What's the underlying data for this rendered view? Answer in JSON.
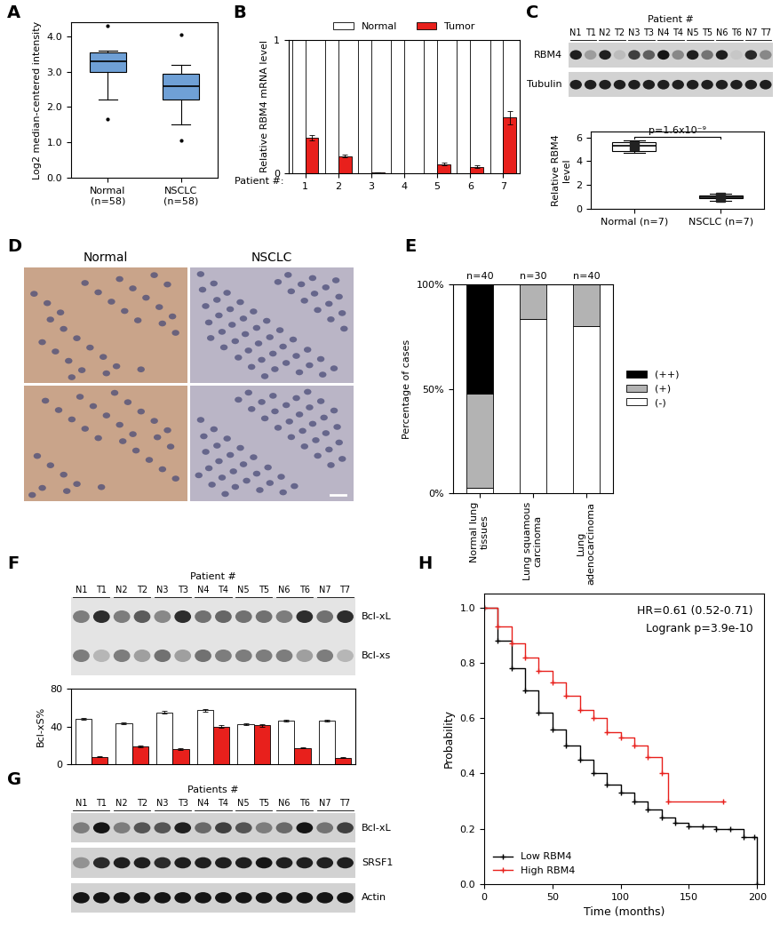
{
  "chart_data": [
    {
      "panel": "A",
      "type": "box",
      "ylabel": "Log2 median-centered intensity",
      "categories": [
        "Normal\n(n=58)",
        "NSCLC\n(n=58)"
      ],
      "boxes": [
        {
          "whislo": 2.2,
          "q1": 3.0,
          "med": 3.3,
          "q3": 3.55,
          "whishi": 3.6,
          "fliers": [
            1.65,
            4.3
          ]
        },
        {
          "whislo": 1.5,
          "q1": 2.2,
          "med": 2.6,
          "q3": 2.95,
          "whishi": 3.2,
          "fliers": [
            1.05,
            4.05
          ]
        }
      ],
      "color": "#6fa0d6",
      "ylim": [
        0,
        4.4
      ],
      "yticks": [
        {
          "value": 0,
          "label": "0.0"
        },
        {
          "value": 1,
          "label": "1.0"
        },
        {
          "value": 2,
          "label": "2.0"
        },
        {
          "value": 3,
          "label": "3.0"
        },
        {
          "value": 4,
          "label": "4.0"
        }
      ]
    },
    {
      "panel": "B",
      "type": "bar",
      "ylabel": "Relative RBM4 mRNA level",
      "xlabel": "Patient #:",
      "categories": [
        "1",
        "2",
        "3",
        "4",
        "5",
        "6",
        "7"
      ],
      "series": [
        {
          "name": "Normal",
          "color": "#ffffff",
          "values": [
            1,
            1,
            1,
            1,
            1,
            1,
            1
          ]
        },
        {
          "name": "Tumor",
          "color": "#e8201c",
          "values": [
            0.27,
            0.13,
            0.01,
            0.0,
            0.07,
            0.05,
            0.42
          ],
          "errors": [
            0.02,
            0.01,
            0.0,
            0.0,
            0.01,
            0.01,
            0.05
          ]
        }
      ],
      "ylim": [
        0,
        1
      ],
      "yticks": [
        0,
        1
      ],
      "legend": "top"
    },
    {
      "panel": "C",
      "type": "blot",
      "header": "Patient #",
      "lanes": [
        "N1",
        "T1",
        "N2",
        "T2",
        "N3",
        "T3",
        "N4",
        "T4",
        "N5",
        "T5",
        "N6",
        "T6",
        "N7",
        "T7"
      ],
      "rows": [
        {
          "name": "RBM4",
          "intensities": [
            0.85,
            0.25,
            0.85,
            0.1,
            0.7,
            0.55,
            0.9,
            0.35,
            0.85,
            0.45,
            0.85,
            0.05,
            0.8,
            0.35
          ]
        },
        {
          "name": "Tubulin",
          "intensities": [
            0.85,
            0.85,
            0.85,
            0.85,
            0.85,
            0.85,
            0.85,
            0.85,
            0.85,
            0.85,
            0.85,
            0.85,
            0.85,
            0.85
          ]
        }
      ]
    },
    {
      "type": "box",
      "ylabel": "Relative RBM4\nlevel",
      "categories": [
        "Normal (n=7)",
        "NSCLC (n=7)"
      ],
      "boxes": [
        {
          "whislo": 4.7,
          "q1": 4.85,
          "med": 5.3,
          "q3": 5.6,
          "whishi": 5.75,
          "fliers": []
        },
        {
          "whislo": 0.7,
          "q1": 0.9,
          "med": 1.0,
          "q3": 1.1,
          "whishi": 1.3,
          "fliers": []
        }
      ],
      "means": [
        5.3,
        1.0
      ],
      "marker": "s",
      "color": "#ffffff",
      "ylim": [
        0,
        6.5
      ],
      "yticks": [
        0,
        2,
        4,
        6
      ],
      "annotations": [
        "p=1.6x10⁻⁹"
      ]
    },
    {
      "panel": "D",
      "type": "image",
      "columns": [
        "Normal",
        "NSCLC"
      ],
      "rows": 2,
      "colors": [
        "#c9a48a",
        "#bab5c6"
      ]
    },
    {
      "panel": "E",
      "type": "bar",
      "stacked": true,
      "ylabel": "Percentage of cases",
      "categories": [
        "Normal lung\ntissues",
        "Lung squamous\ncarcinoma",
        "Lung\nadenocarcinoma"
      ],
      "annotations": [
        "n=40",
        "n=30",
        "n=40"
      ],
      "series": [
        {
          "name": "(-)",
          "color": "#ffffff",
          "values": [
            2.5,
            83.3,
            80
          ]
        },
        {
          "name": "(+)",
          "color": "#b3b3b3",
          "values": [
            45,
            16.7,
            20
          ]
        },
        {
          "name": "(++)",
          "color": "#000000",
          "values": [
            52.5,
            0,
            0
          ]
        }
      ],
      "ylim": [
        0,
        100
      ],
      "yticks": [
        {
          "value": 0,
          "label": "0%"
        },
        {
          "value": 50,
          "label": "50%"
        },
        {
          "value": 100,
          "label": "100%"
        }
      ],
      "legend": "right"
    },
    {
      "panel": "F",
      "type": "gel",
      "header": "Patient #",
      "lanes": [
        "N1",
        "T1",
        "N2",
        "T2",
        "N3",
        "T3",
        "N4",
        "T4",
        "N5",
        "T5",
        "N6",
        "T6",
        "N7",
        "T7"
      ],
      "rows": [
        {
          "name": "Bcl-xL",
          "intensities": [
            0.45,
            0.8,
            0.45,
            0.6,
            0.4,
            0.8,
            0.5,
            0.55,
            0.5,
            0.5,
            0.45,
            0.8,
            0.5,
            0.8
          ]
        },
        {
          "name": "Bcl-xs",
          "intensities": [
            0.45,
            0.2,
            0.45,
            0.3,
            0.5,
            0.3,
            0.5,
            0.45,
            0.45,
            0.45,
            0.45,
            0.3,
            0.45,
            0.2
          ]
        }
      ]
    },
    {
      "type": "bar",
      "ylabel": "Bcl-xS%",
      "categories": [
        null,
        null,
        null,
        null,
        null,
        null,
        null
      ],
      "series": [
        {
          "name": "Normal",
          "color": "#ffffff",
          "values": [
            48,
            43,
            55,
            57,
            42,
            46,
            46
          ],
          "errors": [
            1,
            1,
            1.5,
            1.5,
            1,
            1,
            1
          ]
        },
        {
          "name": "Tumor",
          "color": "#e8201c",
          "values": [
            8,
            19,
            16,
            40,
            41,
            17,
            7
          ],
          "errors": [
            0.5,
            1,
            1,
            1,
            1,
            0.5,
            0.5
          ]
        }
      ],
      "ylim": [
        0,
        80
      ],
      "yticks": [
        0,
        40,
        80
      ],
      "tick_labels": "y"
    },
    {
      "panel": "G",
      "type": "blot",
      "header": "Patients #",
      "lanes": [
        "N1",
        "T1",
        "N2",
        "T2",
        "N3",
        "T3",
        "N4",
        "T4",
        "N5",
        "T5",
        "N6",
        "T6",
        "N7",
        "T7"
      ],
      "rows": [
        {
          "name": "Bcl-xL",
          "intensities": [
            0.4,
            0.9,
            0.4,
            0.6,
            0.6,
            0.85,
            0.5,
            0.7,
            0.6,
            0.4,
            0.5,
            0.9,
            0.45,
            0.7
          ]
        },
        {
          "name": "SRSF1",
          "intensities": [
            0.3,
            0.8,
            0.85,
            0.85,
            0.8,
            0.85,
            0.85,
            0.85,
            0.85,
            0.9,
            0.85,
            0.85,
            0.85,
            0.85
          ]
        },
        {
          "name": "Actin",
          "intensities": [
            0.9,
            0.9,
            0.9,
            0.9,
            0.9,
            0.9,
            0.9,
            0.9,
            0.9,
            0.9,
            0.9,
            0.9,
            0.9,
            0.9
          ]
        }
      ]
    },
    {
      "panel": "H",
      "type": "line",
      "xlabel": "Time (months)",
      "ylabel": "Probability",
      "series": [
        {
          "name": "Low RBM4",
          "color": "#000000",
          "marker": "+",
          "line_style": "steps",
          "x": [
            0,
            10,
            20,
            30,
            40,
            50,
            60,
            70,
            80,
            90,
            100,
            110,
            120,
            130,
            140,
            150,
            160,
            170,
            180,
            190,
            198,
            200
          ],
          "values": [
            1.0,
            0.88,
            0.78,
            0.7,
            0.62,
            0.56,
            0.5,
            0.45,
            0.4,
            0.36,
            0.33,
            0.3,
            0.27,
            0.24,
            0.22,
            0.21,
            0.21,
            0.2,
            0.2,
            0.17,
            0.17,
            0.0
          ]
        },
        {
          "name": "High RBM4",
          "color": "#e8201c",
          "marker": "+",
          "line_style": "steps",
          "x": [
            0,
            10,
            20,
            30,
            40,
            50,
            60,
            70,
            80,
            90,
            100,
            110,
            120,
            130,
            135,
            175
          ],
          "values": [
            1.0,
            0.93,
            0.87,
            0.82,
            0.77,
            0.73,
            0.68,
            0.63,
            0.6,
            0.55,
            0.53,
            0.5,
            0.46,
            0.4,
            0.3,
            0.3
          ]
        }
      ],
      "annotations": [
        "HR=0.61 (0.52-0.71)",
        "Logrank p=3.9e-10"
      ],
      "xlim": [
        0,
        205
      ],
      "xticks": [
        0,
        50,
        100,
        150,
        200
      ],
      "ylim": [
        0,
        1.05
      ],
      "yticks": [
        {
          "value": 0,
          "label": "0.0"
        },
        {
          "value": 0.2,
          "label": "0.2"
        },
        {
          "value": 0.4,
          "label": "0.4"
        },
        {
          "value": 0.6,
          "label": "0.6"
        },
        {
          "value": 0.8,
          "label": "0.8"
        },
        {
          "value": 1.0,
          "label": "1.0"
        }
      ],
      "legend": "lower left"
    }
  ]
}
